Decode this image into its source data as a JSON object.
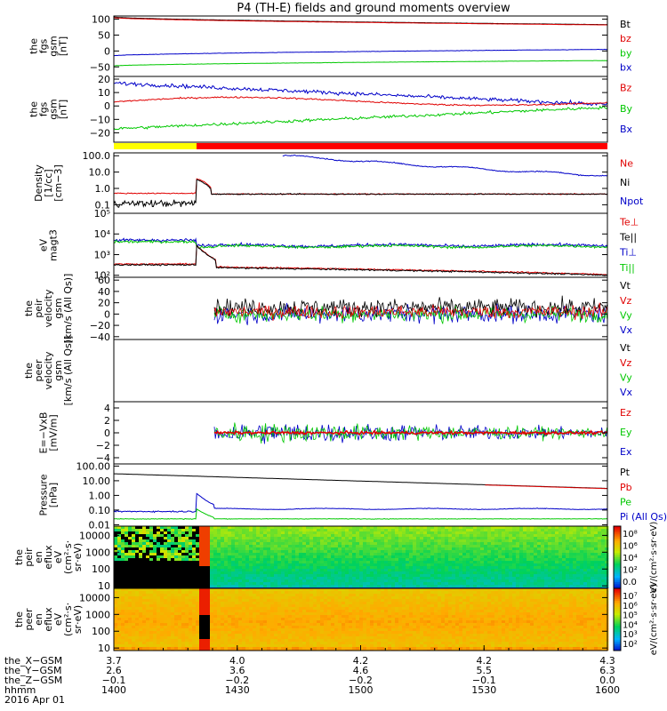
{
  "title": "P4 (TH-E) fields and ground moments overview",
  "chart_data": [
    {
      "id": "fgs",
      "type": "line",
      "ylabel": [
        "the",
        "fgs",
        "gsm",
        "[nT]"
      ],
      "ylim": [
        -80,
        110
      ],
      "yticks": [
        "100",
        "50",
        "0",
        "−50"
      ],
      "ytick_values": [
        100,
        50,
        0,
        -50
      ],
      "legend": [
        {
          "name": "Bt",
          "color": "#000000"
        },
        {
          "name": "bz",
          "color": "#e00000"
        },
        {
          "name": "by",
          "color": "#00c800"
        },
        {
          "name": "bx",
          "color": "#0000c8"
        }
      ],
      "series": [
        {
          "name": "Bt",
          "color": "#000000",
          "start": 107,
          "end": 83,
          "noise": 0.2
        },
        {
          "name": "bz",
          "color": "#e00000",
          "start": 105,
          "end": 82,
          "noise": 0.2
        },
        {
          "name": "by",
          "color": "#00c800",
          "start": -47,
          "end": -30,
          "noise": 0.3
        },
        {
          "name": "bx",
          "color": "#0000c8",
          "start": -15,
          "end": 5,
          "noise": 0.4
        }
      ]
    },
    {
      "id": "fgs_dsl",
      "type": "line",
      "ylabel": [
        "the",
        "fgs",
        "gsm",
        "[nT]"
      ],
      "ylim": [
        -27,
        22
      ],
      "yticks": [
        "20",
        "10",
        "0",
        "−10",
        "−20"
      ],
      "ytick_values": [
        20,
        10,
        0,
        -10,
        -20
      ],
      "legend": [
        {
          "name": "Bz",
          "color": "#e00000"
        },
        {
          "name": "By",
          "color": "#00c800"
        },
        {
          "name": "Bx",
          "color": "#0000c8"
        }
      ],
      "series": [
        {
          "name": "Bx",
          "color": "#0000c8",
          "start": 17,
          "end": 1,
          "noise": 1.0
        },
        {
          "name": "Bz",
          "color": "#e00000",
          "start": 3,
          "end": 5,
          "noise": 0.4
        },
        {
          "name": "By",
          "color": "#00c800",
          "start": -17,
          "end": -1,
          "noise": 0.8
        }
      ]
    },
    {
      "id": "density",
      "type": "line",
      "scale": "log",
      "ylabel": [
        "Density",
        "[1/cc]",
        "[cm−3]"
      ],
      "ylim": [
        0.03,
        150
      ],
      "yticks": [
        "100.0",
        "10.0",
        "1.0",
        "0.1"
      ],
      "ytick_values": [
        100,
        10,
        1,
        0.1
      ],
      "legend": [
        {
          "name": "Ne",
          "color": "#e00000"
        },
        {
          "name": "Ni",
          "color": "#000000"
        },
        {
          "name": "Npot",
          "color": "#0000c8"
        }
      ],
      "series": [
        {
          "name": "Ne",
          "color": "#e00000",
          "start": 0.5,
          "end": 0.45
        },
        {
          "name": "Ni",
          "color": "#000000",
          "start": 0.12,
          "end": 0.45
        },
        {
          "name": "Npot",
          "color": "#0000c8",
          "start": 120,
          "end": 3
        }
      ]
    },
    {
      "id": "temp",
      "type": "line",
      "scale": "log",
      "ylabel": [
        "eV",
        "magt3"
      ],
      "yticks": [
        "10⁵",
        "10⁴",
        "10³",
        "10²"
      ],
      "ytick_values": [
        100000,
        10000,
        1000,
        100
      ],
      "ylim": [
        80,
        100000
      ],
      "legend": [
        {
          "name": "Te⊥",
          "color": "#e00000"
        },
        {
          "name": "Te||",
          "color": "#000000"
        },
        {
          "name": "Ti⊥",
          "color": "#0000c8"
        },
        {
          "name": "Ti||",
          "color": "#00c800"
        }
      ],
      "series": [
        {
          "name": "Ti⊥",
          "color": "#0000c8",
          "start": 5000,
          "end": 2800
        },
        {
          "name": "Ti||",
          "color": "#00c800",
          "start": 4000,
          "end": 2500
        },
        {
          "name": "Te⊥",
          "color": "#e00000",
          "start": 350,
          "end": 140
        },
        {
          "name": "Te||",
          "color": "#000000",
          "start": 330,
          "end": 130
        }
      ]
    },
    {
      "id": "peir_vel",
      "type": "line",
      "ylabel": [
        "the",
        "peir",
        "velocity",
        "gsm",
        "[km/s (All Qs)]"
      ],
      "ylim": [
        -45,
        65
      ],
      "yticks": [
        "60",
        "40",
        "20",
        "0",
        "−20",
        "−40"
      ],
      "ytick_values": [
        60,
        40,
        20,
        0,
        -20,
        -40
      ],
      "legend": [
        {
          "name": "Vt",
          "color": "#000000"
        },
        {
          "name": "Vz",
          "color": "#e00000"
        },
        {
          "name": "Vy",
          "color": "#00c800"
        },
        {
          "name": "Vx",
          "color": "#0000c8"
        }
      ]
    },
    {
      "id": "peer_vel",
      "type": "line",
      "ylabel": [
        "the",
        "peer",
        "velocity",
        "gsm",
        "[km/s (All Qs)]"
      ],
      "yticks": [],
      "ytick_values": [],
      "legend": [
        {
          "name": "Vt",
          "color": "#000000"
        },
        {
          "name": "Vz",
          "color": "#e00000"
        },
        {
          "name": "Vy",
          "color": "#00c800"
        },
        {
          "name": "Vx",
          "color": "#0000c8"
        }
      ]
    },
    {
      "id": "efield",
      "type": "line",
      "ylabel": [
        "E=−VxB",
        "[mV/m]"
      ],
      "ylim": [
        -5,
        5
      ],
      "yticks": [
        "4",
        "2",
        "0",
        "−2",
        "−4"
      ],
      "ytick_values": [
        4,
        2,
        0,
        -2,
        -4
      ],
      "legend": [
        {
          "name": "Ez",
          "color": "#e00000"
        },
        {
          "name": "Ey",
          "color": "#00c800"
        },
        {
          "name": "Ex",
          "color": "#0000c8"
        }
      ]
    },
    {
      "id": "pressure",
      "type": "line",
      "scale": "log",
      "ylabel": [
        "Pressure",
        "[nPa]"
      ],
      "ylim": [
        0.008,
        140
      ],
      "yticks": [
        "100.00",
        "10.00",
        "1.00",
        "0.10",
        "0.01"
      ],
      "ytick_values": [
        100,
        10,
        1,
        0.1,
        0.01
      ],
      "legend": [
        {
          "name": "Pt",
          "color": "#000000"
        },
        {
          "name": "Pb",
          "color": "#e00000"
        },
        {
          "name": "Pe",
          "color": "#00c800"
        },
        {
          "name": "Pi (All Qs)",
          "color": "#0000c8"
        }
      ],
      "series": [
        {
          "name": "Pt",
          "color": "#000000",
          "start": 30,
          "end": 3
        },
        {
          "name": "Pb",
          "color": "#e00000",
          "start": 29,
          "end": 2.9
        },
        {
          "name": "Pe",
          "color": "#00c800",
          "start": 0.02,
          "end": 0.03
        },
        {
          "name": "Pi",
          "color": "#0000c8",
          "start": 0.1,
          "end": 0.13
        }
      ]
    },
    {
      "id": "peir_en",
      "type": "heatmap",
      "ylabel": [
        "the",
        "peir",
        "en",
        "eflux",
        "eV",
        "(cm²·s·",
        "sr·eV)"
      ],
      "yticks": [
        "10000",
        "1000",
        "100",
        "10"
      ],
      "ytick_values": [
        10000,
        1000,
        100,
        10
      ],
      "colorbar": [
        "10⁸",
        "10⁶",
        "10⁴",
        "10²",
        "0.0"
      ],
      "colorbar_label": "eV/(cm²·s·sr·eV)"
    },
    {
      "id": "peer_en",
      "type": "heatmap",
      "ylabel": [
        "the",
        "peer",
        "en",
        "eflux",
        "eV",
        "(cm²·s·",
        "sr·eV)"
      ],
      "yticks": [
        "10000",
        "1000",
        "100",
        "10"
      ],
      "ytick_values": [
        10000,
        1000,
        100,
        10
      ],
      "colorbar": [
        "10⁷",
        "10⁶",
        "10⁵",
        "10⁴",
        "10³",
        "10²"
      ],
      "colorbar_label": "eV/(cm²·s·sr·eV)"
    }
  ],
  "time_axis": {
    "row_labels": [
      "the_X−GSM",
      "the_Y−GSM",
      "the_Z−GSM",
      "hhmm",
      "2016 Apr 01"
    ],
    "columns": [
      [
        "3.7",
        "2.6",
        "−0.1",
        "1400"
      ],
      [
        "4.0",
        "3.6",
        "−0.2",
        "1430"
      ],
      [
        "4.2",
        "4.6",
        "−0.2",
        "1500"
      ],
      [
        "4.2",
        "5.5",
        "−0.1",
        "1530"
      ],
      [
        "4.3",
        "6.3",
        "0.0",
        "1600"
      ]
    ]
  },
  "colors": {
    "mode_bar_slow": "#ffff00",
    "mode_bar_fast": "#ff0000",
    "black": "#000000",
    "red": "#e00000",
    "green": "#00c800",
    "blue": "#0000c8"
  }
}
